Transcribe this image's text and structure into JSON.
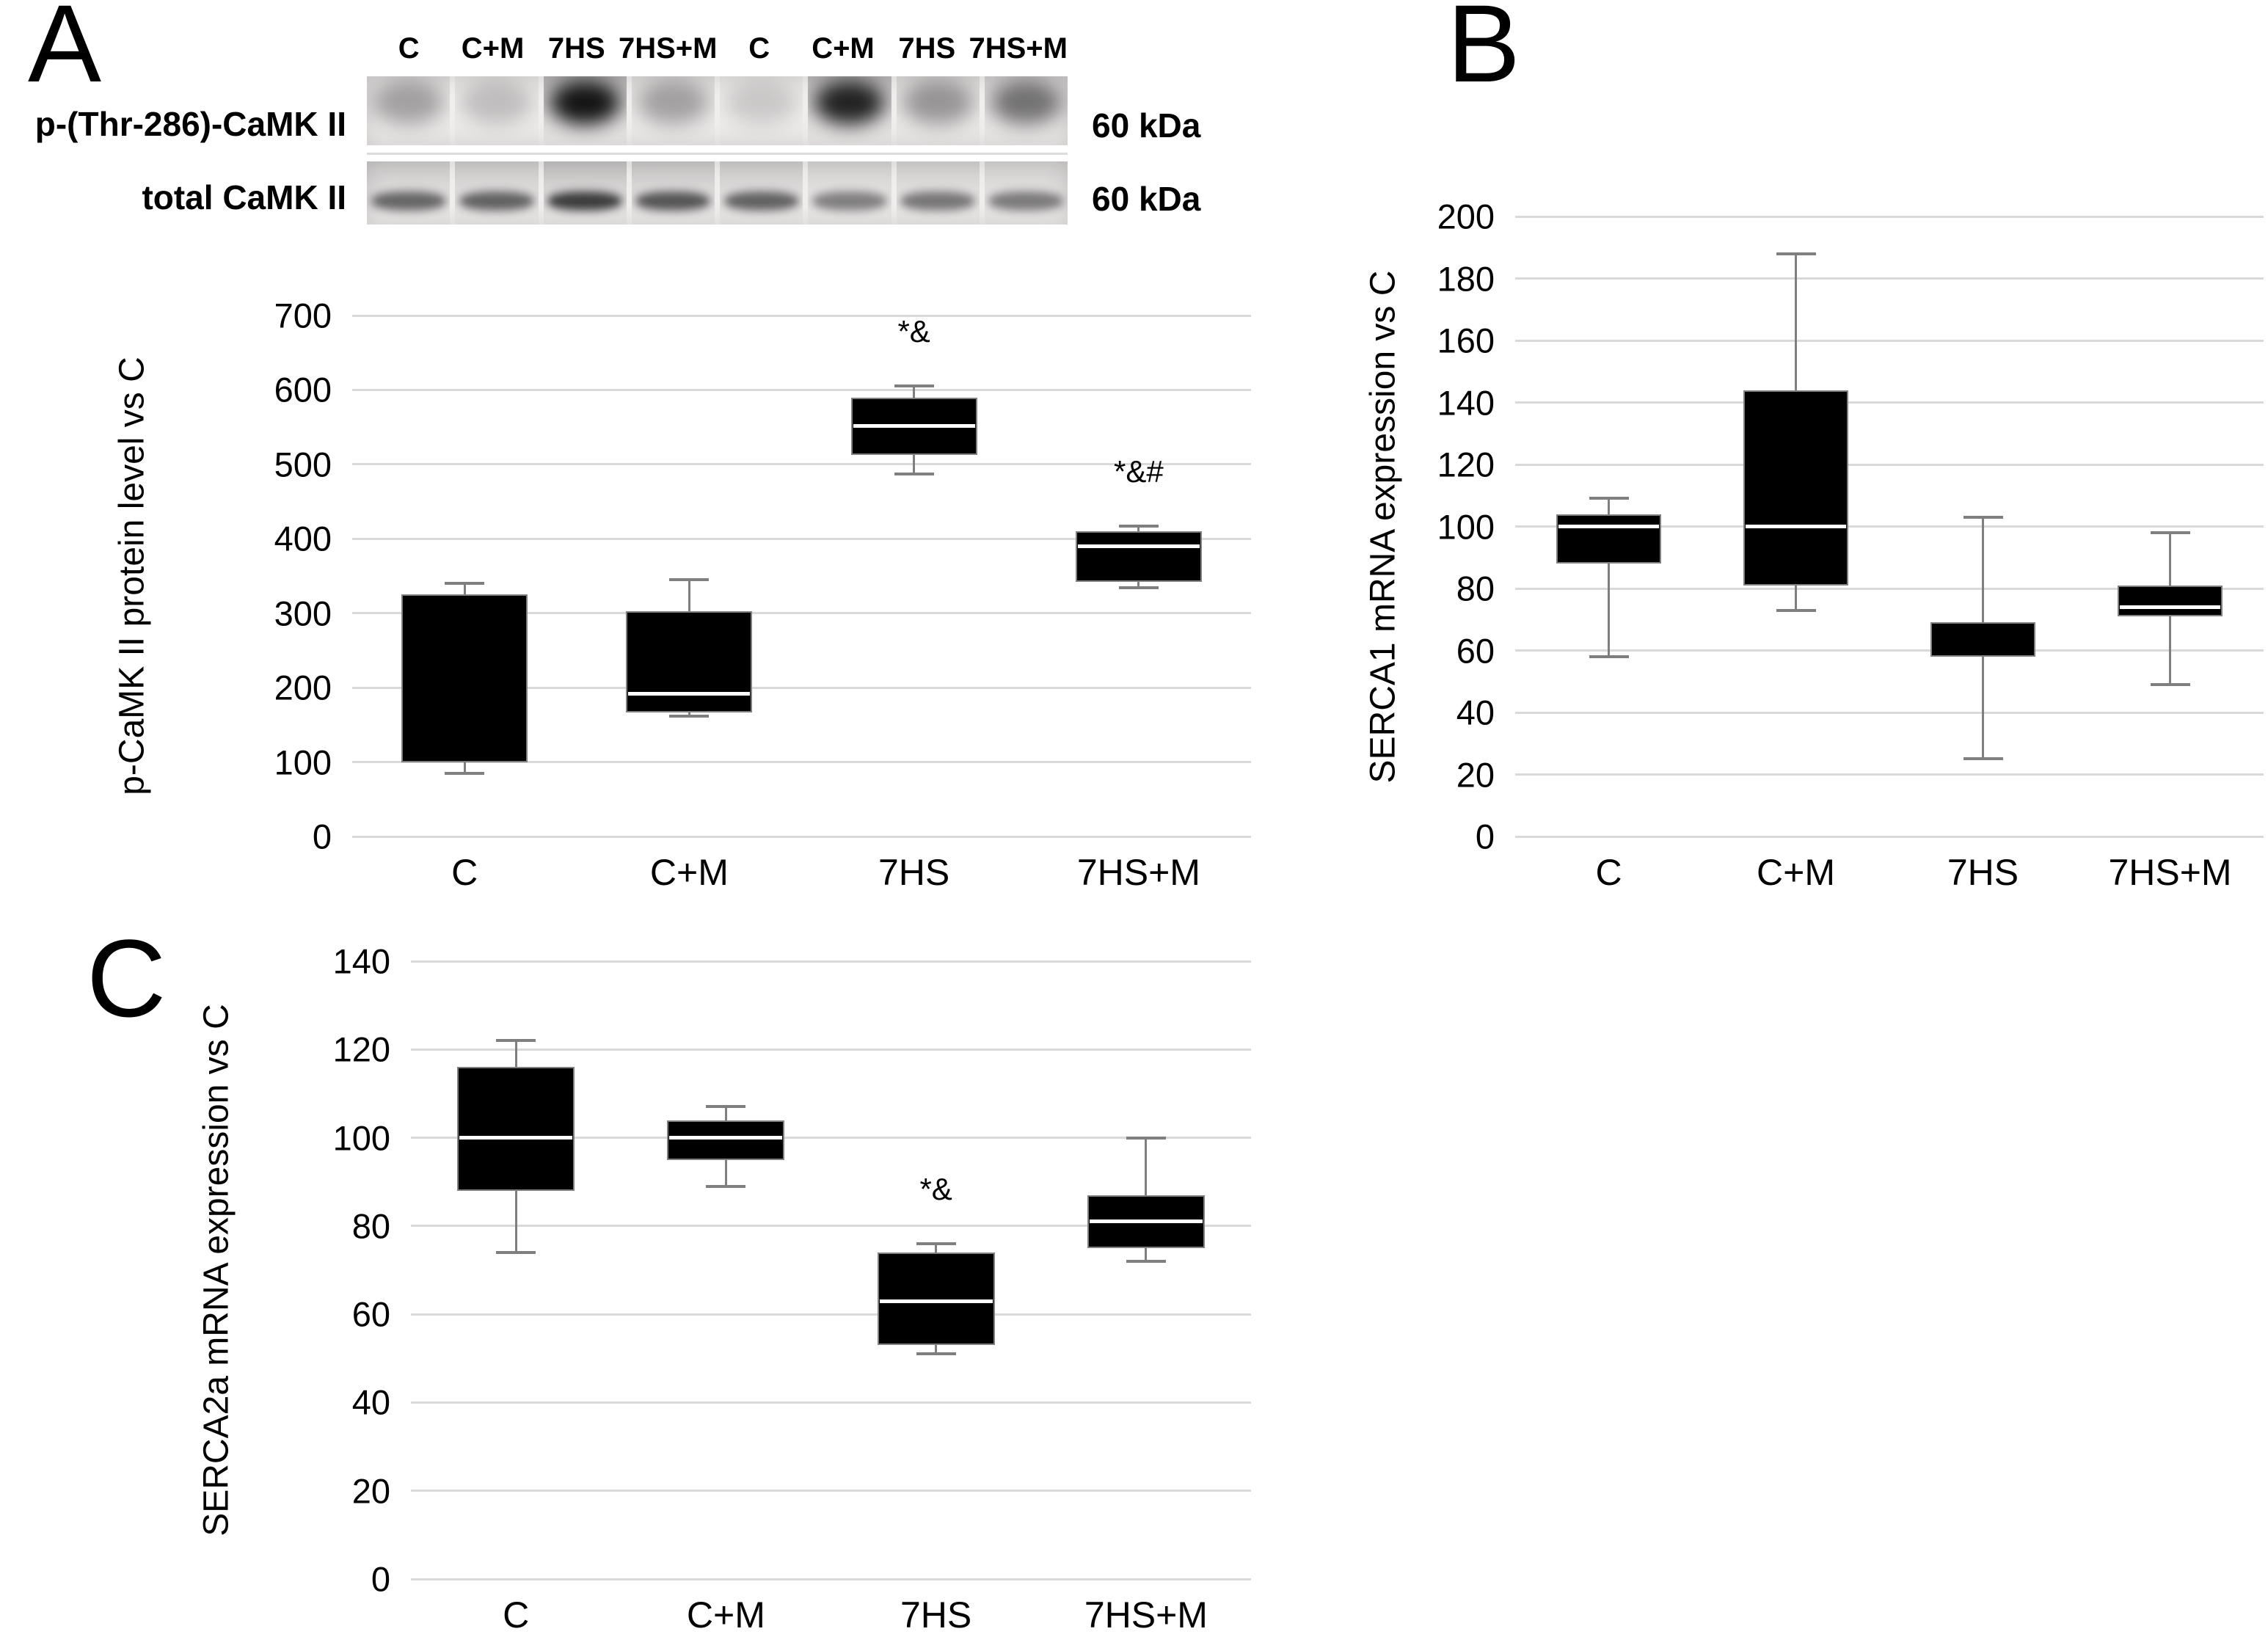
{
  "figure": {
    "background": "#ffffff",
    "colors": {
      "box_fill": "#000000",
      "box_border": "#808080",
      "median_line": "#ffffff",
      "whisker": "#7f7f7f",
      "gridline": "#d9d9d9",
      "text": "#000000"
    }
  },
  "panels": {
    "A": {
      "letter": "A",
      "blot": {
        "lane_labels": [
          "C",
          "C+M",
          "7HS",
          "7HS+M",
          "C",
          "C+M",
          "7HS",
          "7HS+M"
        ],
        "rows": [
          {
            "label": "p-(Thr-286)-CaMK II",
            "kda": "60 kDa",
            "band_style": "blob",
            "band_intensities": [
              0.3,
              0.18,
              0.95,
              0.3,
              0.14,
              0.88,
              0.35,
              0.5
            ]
          },
          {
            "label": "total CaMK II",
            "kda": "60 kDa",
            "band_style": "band",
            "band_intensities": [
              0.6,
              0.62,
              0.8,
              0.68,
              0.62,
              0.48,
              0.52,
              0.5
            ]
          }
        ]
      }
    },
    "B": {
      "letter": "B"
    },
    "C": {
      "letter": "C"
    }
  },
  "chart_data": [
    {
      "id": "A",
      "type": "box",
      "ylabel": "p-CaMK II protein level vs C",
      "ylim": [
        0,
        700
      ],
      "yticks": [
        0,
        100,
        200,
        300,
        400,
        500,
        600,
        700
      ],
      "grid": true,
      "categories": [
        "C",
        "C+M",
        "7HS",
        "7HS+M"
      ],
      "boxes": [
        {
          "category": "C",
          "whisker_low": 85,
          "q1": 100,
          "median": null,
          "q3": 325,
          "whisker_high": 340,
          "annotation": null
        },
        {
          "category": "C+M",
          "whisker_low": 162,
          "q1": 167,
          "median": 192,
          "q3": 303,
          "whisker_high": 345,
          "annotation": null
        },
        {
          "category": "7HS",
          "whisker_low": 487,
          "q1": 513,
          "median": 552,
          "q3": 590,
          "whisker_high": 605,
          "annotation": "*&"
        },
        {
          "category": "7HS+M",
          "whisker_low": 334,
          "q1": 342,
          "median": 390,
          "q3": 410,
          "whisker_high": 417,
          "annotation": "*&#"
        }
      ]
    },
    {
      "id": "B",
      "type": "box",
      "ylabel": "SERCA1 mRNA expression vs C",
      "ylim": [
        0,
        200
      ],
      "yticks": [
        0,
        20,
        40,
        60,
        80,
        100,
        120,
        140,
        160,
        180,
        200
      ],
      "grid": true,
      "categories": [
        "C",
        "C+M",
        "7HS",
        "7HS+M"
      ],
      "boxes": [
        {
          "category": "C",
          "whisker_low": 58,
          "q1": 88,
          "median": 100,
          "q3": 104,
          "whisker_high": 109,
          "annotation": null
        },
        {
          "category": "C+M",
          "whisker_low": 73,
          "q1": 81,
          "median": 100,
          "q3": 144,
          "whisker_high": 188,
          "annotation": null
        },
        {
          "category": "7HS",
          "whisker_low": 25,
          "q1": 58,
          "median": null,
          "q3": 69,
          "whisker_high": 103,
          "annotation": null
        },
        {
          "category": "7HS+M",
          "whisker_low": 49,
          "q1": 71,
          "median": 74,
          "q3": 81,
          "whisker_high": 98,
          "annotation": null
        }
      ]
    },
    {
      "id": "C",
      "type": "box",
      "ylabel": "SERCA2a mRNA expression vs C",
      "ylim": [
        0,
        140
      ],
      "yticks": [
        0,
        20,
        40,
        60,
        80,
        100,
        120,
        140
      ],
      "grid": true,
      "categories": [
        "C",
        "C+M",
        "7HS",
        "7HS+M"
      ],
      "boxes": [
        {
          "category": "C",
          "whisker_low": 74,
          "q1": 88,
          "median": 100,
          "q3": 116,
          "whisker_high": 122,
          "annotation": null
        },
        {
          "category": "C+M",
          "whisker_low": 89,
          "q1": 95,
          "median": 100,
          "q3": 104,
          "whisker_high": 107,
          "annotation": null
        },
        {
          "category": "7HS",
          "whisker_low": 51,
          "q1": 53,
          "median": 63,
          "q3": 74,
          "whisker_high": 76,
          "annotation": "*&"
        },
        {
          "category": "7HS+M",
          "whisker_low": 72,
          "q1": 75,
          "median": 81,
          "q3": 87,
          "whisker_high": 100,
          "annotation": null
        }
      ]
    }
  ]
}
